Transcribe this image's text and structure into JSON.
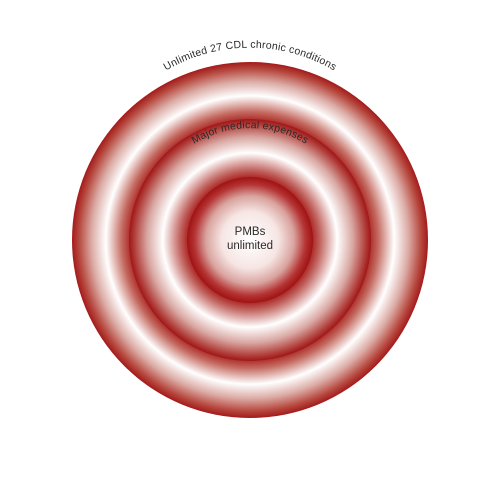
{
  "diagram": {
    "center": {
      "line1": "PMBs",
      "line2": "unlimited"
    },
    "rings": [
      {
        "label": "Unlimited 27 CDL chronic conditions"
      },
      {
        "label": "Major medical expenses"
      }
    ],
    "colors": {
      "dark_red": "#a41818",
      "mid_red": "#b84545",
      "light": "#ffffff",
      "text": "#2a2a2a"
    }
  }
}
